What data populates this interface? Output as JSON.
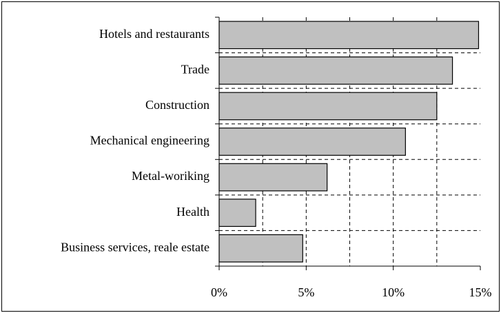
{
  "chart_data": {
    "type": "hbar",
    "categories": [
      "Hotels and restaurants",
      "Trade",
      "Construction",
      "Mechanical engineering",
      "Metal-woriking",
      "Health",
      "Business services, reale estate"
    ],
    "values": [
      14.9,
      13.4,
      12.5,
      10.7,
      6.2,
      2.1,
      4.8
    ],
    "color": "#c0c0c0",
    "xlim": [
      0,
      15
    ],
    "xticks": [
      {
        "value": 0,
        "label": "0%"
      },
      {
        "value": 5,
        "label": "5%"
      },
      {
        "value": 10,
        "label": "10%"
      },
      {
        "value": 15,
        "label": "15%"
      }
    ],
    "grid_ticks": [
      2.5,
      5,
      7.5,
      10,
      12.5
    ],
    "grid": true
  }
}
